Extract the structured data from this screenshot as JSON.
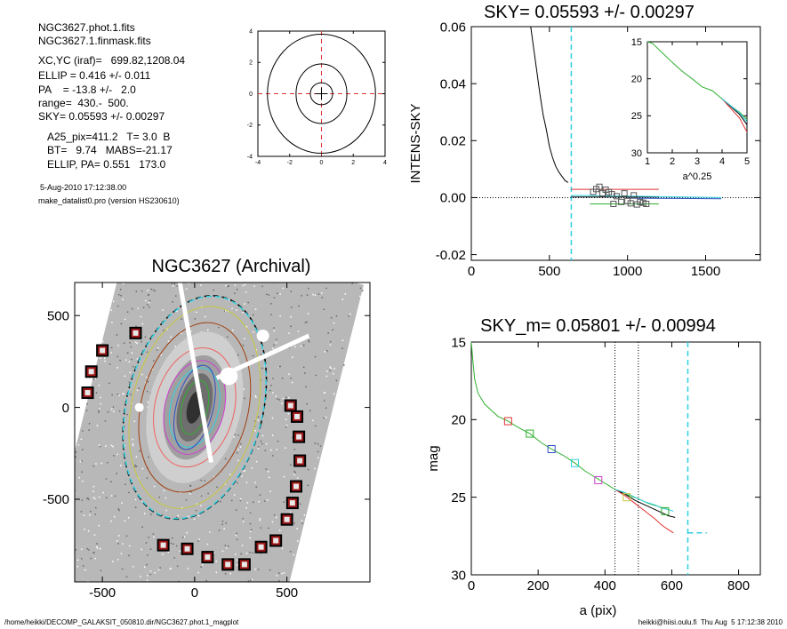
{
  "info": {
    "file1": "NGC3627.phot.1.fits",
    "file2": "NGC3627.1.finmask.fits",
    "xcyc": "XC,YC (iraf)=   699.82,1208.04",
    "ellip": "ELLIP = 0.416 +/- 0.011",
    "pa": "PA    = -13.8 +/-   2.0",
    "range": "range=  430.-  500.",
    "sky": "SKY= 0.05593 +/- 0.00297",
    "a25": "A25_pix=411.2   T= 3.0  B",
    "bt": "BT=   9.74   MABS=-21.17",
    "ellip_pa": "ELLIP, PA= 0.551   173.0",
    "date": "5-Aug-2010 17:12:38.00",
    "program": "make_datalist0.pro (version HS230610)"
  },
  "footer": {
    "left": "/home/heikki/DECOMP_GALAKSIT_050810.dir/NGC3627.phot.1_magplot",
    "right": "heikki@hiisi.oulu.fi  Thu Aug  5 17:12:38 2010"
  },
  "colors": {
    "black": "#000000",
    "red": "#e03030",
    "green": "#30b030",
    "cyan": "#30d0e0",
    "blue": "#3050c0",
    "magenta": "#d040d0",
    "brown": "#a04010",
    "yellow": "#c8c840",
    "pink": "#f06060"
  },
  "chart_data": [
    {
      "id": "contour-mini",
      "type": "contour",
      "xlim": [
        -4,
        4
      ],
      "ylim": [
        -4,
        4
      ],
      "xticks": [
        -4,
        -2,
        0,
        2,
        4
      ],
      "yticks": [
        -4,
        -2,
        0,
        2,
        4
      ],
      "contours": [
        {
          "rx": 0.7,
          "ry": 0.7
        },
        {
          "rx": 1.6,
          "ry": 1.9
        },
        {
          "rx": 3.4,
          "ry": 3.8
        }
      ]
    },
    {
      "id": "sky-plot",
      "type": "line",
      "title": "SKY= 0.05593 +/- 0.00297",
      "ylabel": "INTENS-SKY",
      "xlim": [
        0,
        1850
      ],
      "ylim": [
        -0.022,
        0.06
      ],
      "xticks": [
        0,
        500,
        1000,
        1500
      ],
      "yticks": [
        -0.02,
        0.0,
        0.02,
        0.04,
        0.06
      ],
      "ytick_labels": [
        "-0.02",
        "0.00",
        "0.02",
        "0.04",
        "0.06"
      ],
      "vline": 640,
      "profile": [
        [
          380,
          0.06
        ],
        [
          400,
          0.052
        ],
        [
          420,
          0.044
        ],
        [
          440,
          0.036
        ],
        [
          460,
          0.029
        ],
        [
          480,
          0.024
        ],
        [
          500,
          0.018
        ],
        [
          520,
          0.014
        ],
        [
          540,
          0.011
        ],
        [
          560,
          0.009
        ],
        [
          580,
          0.0075
        ],
        [
          600,
          0.006
        ],
        [
          620,
          0.0053
        ]
      ],
      "squares": [
        [
          780,
          0.002
        ],
        [
          800,
          0.003
        ],
        [
          820,
          0.0038
        ],
        [
          840,
          0.0015
        ],
        [
          860,
          0.0028
        ],
        [
          880,
          0.0019
        ],
        [
          900,
          0.0012
        ],
        [
          910,
          -0.0022
        ],
        [
          930,
          0.0005
        ],
        [
          960,
          -0.0015
        ],
        [
          980,
          0.0015
        ],
        [
          1000,
          -0.0012
        ],
        [
          1020,
          -0.002
        ],
        [
          1040,
          0.0008
        ],
        [
          1060,
          -0.0024
        ],
        [
          1080,
          -0.0015
        ],
        [
          1100,
          -0.0018
        ],
        [
          1120,
          -0.0022
        ]
      ],
      "series": [
        {
          "color": "red",
          "x": [
            640,
            1200
          ],
          "y": [
            0.0029,
            0.0029
          ]
        },
        {
          "color": "black",
          "x": [
            640,
            1200
          ],
          "y": [
            0.0002,
            0.0002
          ]
        },
        {
          "color": "cyan",
          "x": [
            640,
            1600
          ],
          "y": [
            0.0008,
            0.0
          ]
        },
        {
          "color": "green",
          "x": [
            760,
            1200
          ],
          "y": [
            -0.0022,
            -0.0022
          ]
        },
        {
          "color": "blue",
          "x": [
            1000,
            1600
          ],
          "y": [
            -0.0002,
            -0.0004
          ]
        }
      ]
    },
    {
      "id": "sky-inset",
      "type": "line",
      "xlabel": "a^0.25",
      "xlim": [
        1,
        5
      ],
      "ylim": [
        15,
        30
      ],
      "xticks": [
        1,
        2,
        3,
        4,
        5
      ],
      "yticks": [
        15,
        20,
        25,
        30
      ],
      "series": [
        {
          "color": "green",
          "x": [
            1.0,
            1.2,
            1.6,
            2.0,
            2.4,
            2.8,
            3.2,
            3.6,
            4.0,
            4.4,
            4.7,
            5.0
          ],
          "y": [
            15.0,
            15.2,
            16.5,
            17.8,
            19.0,
            20.0,
            21.1,
            21.6,
            22.7,
            23.8,
            24.5,
            25.5
          ]
        },
        {
          "color": "black",
          "x": [
            4.0,
            4.4,
            4.7,
            5.0
          ],
          "y": [
            22.7,
            23.9,
            24.8,
            26.2
          ]
        },
        {
          "color": "red",
          "x": [
            4.0,
            4.4,
            4.7,
            5.0
          ],
          "y": [
            22.7,
            24.2,
            25.3,
            27.2
          ]
        },
        {
          "color": "cyan",
          "x": [
            4.0,
            4.4,
            4.7,
            5.0
          ],
          "y": [
            22.7,
            23.8,
            24.6,
            25.8
          ]
        }
      ]
    },
    {
      "id": "galaxy-image",
      "type": "image",
      "title": "NGC3627 (Archival)",
      "xlim": [
        -650,
        950
      ],
      "ylim": [
        -950,
        680
      ],
      "xticks": [
        -500,
        0,
        500
      ],
      "yticks": [
        -500,
        0,
        500
      ],
      "ellipses": [
        {
          "color": "black",
          "dashed": true,
          "rx": 370,
          "ry": 620,
          "angle": 14
        },
        {
          "color": "cyan",
          "dashed": true,
          "rx": 368,
          "ry": 617,
          "angle": 14
        },
        {
          "color": "yellow",
          "rx": 340,
          "ry": 560,
          "angle": 14
        },
        {
          "color": "brown",
          "rx": 290,
          "ry": 470,
          "angle": 14
        },
        {
          "color": "pink",
          "rx": 215,
          "ry": 330,
          "angle": 14
        },
        {
          "color": "magenta",
          "rx": 160,
          "ry": 260,
          "angle": 14
        },
        {
          "color": "cyan",
          "rx": 130,
          "ry": 220,
          "angle": 14
        },
        {
          "color": "blue",
          "rx": 100,
          "ry": 235,
          "angle": 14
        },
        {
          "color": "green",
          "rx": 70,
          "ry": 150,
          "angle": 14
        }
      ],
      "boxes": [
        [
          -320,
          405
        ],
        [
          -500,
          310
        ],
        [
          -560,
          195
        ],
        [
          -580,
          80
        ],
        [
          520,
          10
        ],
        [
          555,
          -50
        ],
        [
          565,
          -160
        ],
        [
          570,
          -290
        ],
        [
          550,
          -430
        ],
        [
          530,
          -520
        ],
        [
          500,
          -610
        ],
        [
          440,
          -725
        ],
        [
          360,
          -760
        ],
        [
          270,
          -855
        ],
        [
          180,
          -855
        ],
        [
          70,
          -815
        ],
        [
          -40,
          -770
        ],
        [
          -170,
          -750
        ]
      ]
    },
    {
      "id": "mag-plot",
      "type": "line",
      "title": "SKY_m=  0.05801 +/- 0.00994",
      "xlabel": "a (pix)",
      "ylabel": "mag",
      "xlim": [
        0,
        865
      ],
      "ylim": [
        15,
        30
      ],
      "xticks": [
        0,
        200,
        400,
        600,
        800
      ],
      "yticks": [
        15,
        20,
        25,
        30
      ],
      "vlines_dotted": [
        430,
        500
      ],
      "vline_dashed": 648,
      "sky_segment": {
        "x": [
          648,
          705
        ],
        "y": [
          27.3,
          27.3
        ]
      },
      "series": [
        {
          "color": "green",
          "x": [
            0,
            5,
            10,
            20,
            40,
            60,
            80,
            110,
            140,
            175,
            210,
            240,
            275,
            310,
            340,
            370,
            400,
            430,
            460,
            500,
            530,
            560,
            590
          ],
          "y": [
            15.0,
            16.3,
            17.4,
            18.3,
            19.0,
            19.4,
            19.8,
            20.1,
            20.5,
            20.9,
            21.5,
            21.9,
            22.3,
            22.8,
            23.3,
            23.7,
            24.1,
            24.5,
            24.8,
            25.1,
            25.4,
            25.6,
            25.8
          ]
        },
        {
          "color": "black",
          "x": [
            430,
            460,
            490,
            520,
            550,
            570,
            590,
            610
          ],
          "y": [
            24.5,
            24.8,
            25.2,
            25.5,
            25.8,
            26.0,
            26.2,
            26.3
          ]
        },
        {
          "color": "red",
          "x": [
            430,
            460,
            490,
            520,
            550,
            570,
            590,
            605
          ],
          "y": [
            24.5,
            24.9,
            25.4,
            25.9,
            26.4,
            26.8,
            27.1,
            27.3
          ]
        },
        {
          "color": "cyan",
          "x": [
            430,
            460,
            490,
            520,
            550,
            570,
            590,
            605
          ],
          "y": [
            24.5,
            24.7,
            25.0,
            25.3,
            25.5,
            25.7,
            25.8,
            25.9
          ]
        }
      ],
      "markers": [
        {
          "x": 110,
          "y": 20.1,
          "color": "red"
        },
        {
          "x": 175,
          "y": 20.9,
          "color": "green"
        },
        {
          "x": 240,
          "y": 21.9,
          "color": "blue"
        },
        {
          "x": 310,
          "y": 22.8,
          "color": "cyan"
        },
        {
          "x": 380,
          "y": 23.9,
          "color": "magenta"
        },
        {
          "x": 465,
          "y": 25.0,
          "color": "yellow"
        },
        {
          "x": 580,
          "y": 25.9,
          "color": "green"
        }
      ]
    }
  ]
}
